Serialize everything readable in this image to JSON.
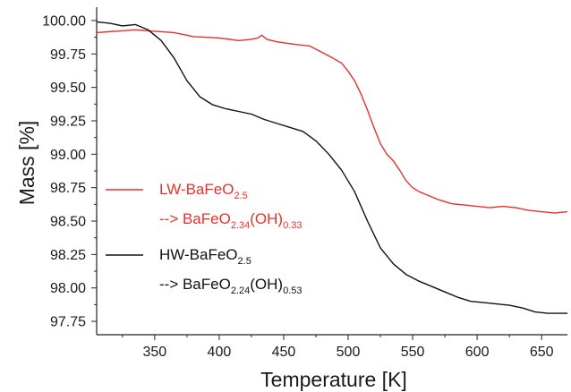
{
  "chart_data": {
    "type": "line",
    "xlabel": "Temperature [K]",
    "ylabel": "Mass [%]",
    "xlim": [
      305,
      670
    ],
    "ylim": [
      97.65,
      100.1
    ],
    "x_ticks": [
      350,
      400,
      450,
      500,
      550,
      600,
      650
    ],
    "y_ticks": [
      "97.75",
      "98.00",
      "98.25",
      "98.50",
      "98.75",
      "99.00",
      "99.25",
      "99.50",
      "99.75",
      "100.00"
    ],
    "grid": false,
    "legend_placement": "left",
    "series": [
      {
        "name": "LW-BaFeO2.5 --> BaFeO2.34(OH)0.33",
        "color": "#e8302a",
        "x": [
          305,
          320,
          335,
          350,
          365,
          380,
          400,
          415,
          425,
          430,
          433,
          437,
          445,
          460,
          470,
          480,
          488,
          495,
          500,
          505,
          510,
          515,
          520,
          525,
          530,
          535,
          540,
          545,
          550,
          555,
          560,
          565,
          570,
          580,
          590,
          600,
          610,
          620,
          630,
          640,
          650,
          660,
          670
        ],
        "y": [
          99.91,
          99.92,
          99.93,
          99.92,
          99.91,
          99.88,
          99.87,
          99.85,
          99.86,
          99.87,
          99.89,
          99.86,
          99.84,
          99.82,
          99.81,
          99.76,
          99.72,
          99.68,
          99.62,
          99.55,
          99.45,
          99.33,
          99.2,
          99.08,
          99.0,
          98.95,
          98.88,
          98.8,
          98.75,
          98.72,
          98.7,
          98.68,
          98.66,
          98.63,
          98.62,
          98.61,
          98.6,
          98.61,
          98.6,
          98.58,
          98.57,
          98.56,
          98.57
        ]
      },
      {
        "name": "HW-BaFeO2.5 --> BaFeO2.24(OH)0.53",
        "color": "#111111",
        "x": [
          305,
          315,
          325,
          335,
          345,
          355,
          365,
          375,
          385,
          395,
          405,
          415,
          425,
          435,
          445,
          455,
          465,
          475,
          485,
          495,
          505,
          515,
          525,
          535,
          545,
          555,
          565,
          575,
          585,
          595,
          605,
          615,
          625,
          635,
          645,
          655,
          670
        ],
        "y": [
          99.99,
          99.98,
          99.96,
          99.97,
          99.93,
          99.85,
          99.72,
          99.55,
          99.43,
          99.37,
          99.34,
          99.32,
          99.3,
          99.26,
          99.23,
          99.2,
          99.17,
          99.1,
          99.0,
          98.88,
          98.72,
          98.5,
          98.3,
          98.18,
          98.1,
          98.05,
          98.01,
          97.97,
          97.93,
          97.9,
          97.89,
          97.88,
          97.87,
          97.85,
          97.82,
          97.81,
          97.81
        ]
      }
    ],
    "legend": [
      {
        "color": "#e8302a",
        "line1": {
          "main": "LW-BaFeO",
          "sub": "2.5"
        },
        "line2": [
          {
            "t": "--> BaFeO",
            "s": ""
          },
          {
            "t": "",
            "s": "2.34"
          },
          {
            "t": "(OH)",
            "s": ""
          },
          {
            "t": "",
            "s": "0.33"
          }
        ]
      },
      {
        "color": "#111111",
        "line1": {
          "main": "HW-BaFeO",
          "sub": "2.5"
        },
        "line2": [
          {
            "t": "--> BaFeO",
            "s": ""
          },
          {
            "t": "",
            "s": "2.24"
          },
          {
            "t": "(OH)",
            "s": ""
          },
          {
            "t": "",
            "s": "0.53"
          }
        ]
      }
    ]
  }
}
